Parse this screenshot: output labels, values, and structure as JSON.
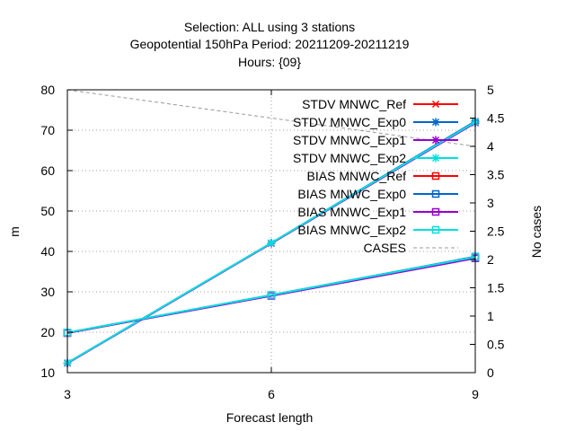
{
  "chart_data": {
    "type": "line",
    "title_lines": [
      "Selection: ALL using     3 stations",
      "Geopotential 150hPa   Period: 20211209-20211219",
      "Hours: {09}"
    ],
    "xlabel": "Forecast length",
    "ylabel": "m",
    "y2label": "No cases",
    "x": [
      3,
      6,
      9
    ],
    "xlim": [
      3,
      9
    ],
    "ylim": [
      10,
      80
    ],
    "y2lim": [
      0,
      5
    ],
    "xticks": [
      3,
      6,
      9
    ],
    "yticks": [
      10,
      20,
      30,
      40,
      50,
      60,
      70,
      80
    ],
    "y2ticks": [
      0,
      0.5,
      1,
      1.5,
      2,
      2.5,
      3,
      3.5,
      4,
      4.5,
      5
    ],
    "grid": true,
    "legend_position": "top-right",
    "series": [
      {
        "name": "STDV MNWC_Ref",
        "color": "#ff0000",
        "marker": "x",
        "axis": "y",
        "values": [
          12.4,
          42.0,
          71.9
        ]
      },
      {
        "name": "STDV MNWC_Exp0",
        "color": "#0066cc",
        "marker": "star",
        "axis": "y",
        "values": [
          12.4,
          42.1,
          72.2
        ]
      },
      {
        "name": "STDV MNWC_Exp1",
        "color": "#9900cc",
        "marker": "star",
        "axis": "y",
        "values": [
          12.3,
          42.0,
          71.8
        ]
      },
      {
        "name": "STDV MNWC_Exp2",
        "color": "#00e0e0",
        "marker": "star",
        "axis": "y",
        "values": [
          12.4,
          42.1,
          72.0
        ]
      },
      {
        "name": "BIAS MNWC_Ref",
        "color": "#ff0000",
        "marker": "square",
        "axis": "y",
        "values": [
          19.8,
          29.1,
          38.4
        ]
      },
      {
        "name": "BIAS MNWC_Exp0",
        "color": "#0066cc",
        "marker": "square",
        "axis": "y",
        "values": [
          19.9,
          29.2,
          38.7
        ]
      },
      {
        "name": "BIAS MNWC_Exp1",
        "color": "#9900cc",
        "marker": "square",
        "axis": "y",
        "values": [
          19.8,
          29.0,
          38.3
        ]
      },
      {
        "name": "BIAS MNWC_Exp2",
        "color": "#00e0e0",
        "marker": "square",
        "axis": "y",
        "values": [
          19.9,
          29.2,
          38.6
        ]
      },
      {
        "name": "CASES",
        "color": "#999999",
        "marker": "none",
        "axis": "y2",
        "dashed": true,
        "values": [
          5,
          4.5,
          4.0
        ]
      }
    ]
  }
}
